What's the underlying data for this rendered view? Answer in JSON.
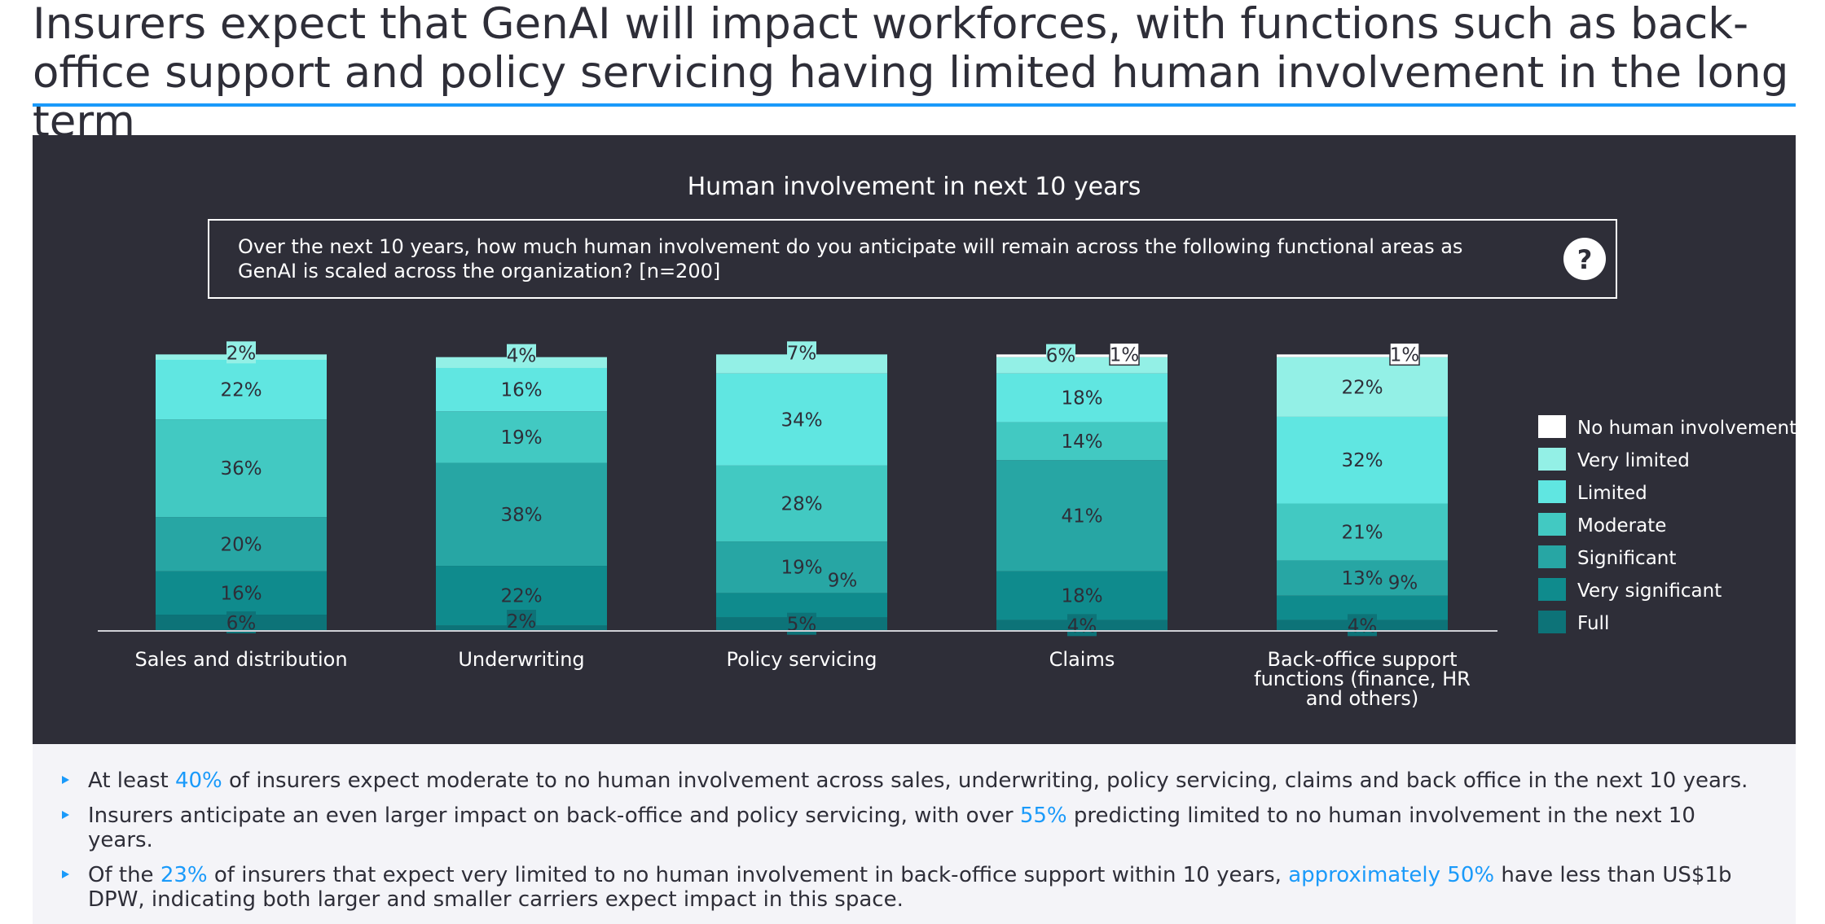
{
  "headline": "Insurers expect that GenAI will impact workforces, with functions such as back-office support and policy servicing having limited human involvement in the long term",
  "panel": {
    "title": "Human involvement in next 10 years",
    "question": [
      "Over the next 10 years, how much human involvement do you anticipate will remain across the following functional areas as",
      "GenAI is scaled across the organization? [n=200]"
    ],
    "question_icon": "question-mark-icon",
    "question_icon_glyph": "?"
  },
  "chart_data": {
    "type": "bar",
    "stacked": true,
    "unit": "%",
    "ylim": [
      0,
      100
    ],
    "grid": false,
    "legend_position": "right",
    "categories": [
      [
        "Sales and distribution"
      ],
      [
        "Underwriting"
      ],
      [
        "Policy servicing"
      ],
      [
        "Claims"
      ],
      [
        "Back-office support",
        "functions (finance, HR",
        "and others)"
      ]
    ],
    "series": [
      {
        "name": "Full",
        "color": "#0d7378",
        "values": [
          6,
          2,
          5,
          4,
          4
        ]
      },
      {
        "name": "Very significant",
        "color": "#0f8b8d",
        "values": [
          16,
          22,
          9,
          18,
          9
        ]
      },
      {
        "name": "Significant",
        "color": "#27a6a4",
        "values": [
          20,
          38,
          19,
          41,
          13
        ]
      },
      {
        "name": "Moderate",
        "color": "#42c9c2",
        "values": [
          36,
          19,
          28,
          14,
          21
        ]
      },
      {
        "name": "Limited",
        "color": "#60e6e1",
        "values": [
          22,
          16,
          34,
          18,
          32
        ]
      },
      {
        "name": "Very limited",
        "color": "#93f0e6",
        "values": [
          2,
          4,
          7,
          6,
          22
        ]
      },
      {
        "name": "No human involvement",
        "color": "#ffffff",
        "values": [
          0,
          0,
          0,
          1,
          1
        ]
      }
    ],
    "labels": [
      [
        "6%",
        "16%",
        "20%",
        "36%",
        "22%",
        "2%",
        ""
      ],
      [
        "2%",
        "22%",
        "38%",
        "19%",
        "16%",
        "4%",
        ""
      ],
      [
        "5%",
        "9%",
        "19%",
        "28%",
        "34%",
        "7%",
        ""
      ],
      [
        "4%",
        "18%",
        "41%",
        "14%",
        "18%",
        "6%",
        "1%"
      ],
      [
        "4%",
        "9%",
        "13%",
        "21%",
        "32%",
        "22%",
        "1%"
      ]
    ]
  },
  "notes": [
    {
      "parts": [
        {
          "text": "At least "
        },
        {
          "text": "40%",
          "hl": true
        },
        {
          "text": " of insurers expect moderate to no human involvement across sales, underwriting, policy servicing, claims and back office in the next 10 years."
        }
      ]
    },
    {
      "parts": [
        {
          "text": "Insurers anticipate an even larger impact on back-office and policy servicing, with over "
        },
        {
          "text": "55%",
          "hl": true
        },
        {
          "text": " predicting limited to no human involvement in the next 10 years."
        }
      ]
    },
    {
      "parts": [
        {
          "text": "Of the "
        },
        {
          "text": "23%",
          "hl": true
        },
        {
          "text": " of insurers that expect very limited to no human involvement in back-office support within 10 years, "
        },
        {
          "text": "approximately 50%",
          "hl": true
        },
        {
          "text": " have less than US$1b DPW, indicating both larger and smaller carriers expect impact in this space."
        }
      ]
    }
  ]
}
